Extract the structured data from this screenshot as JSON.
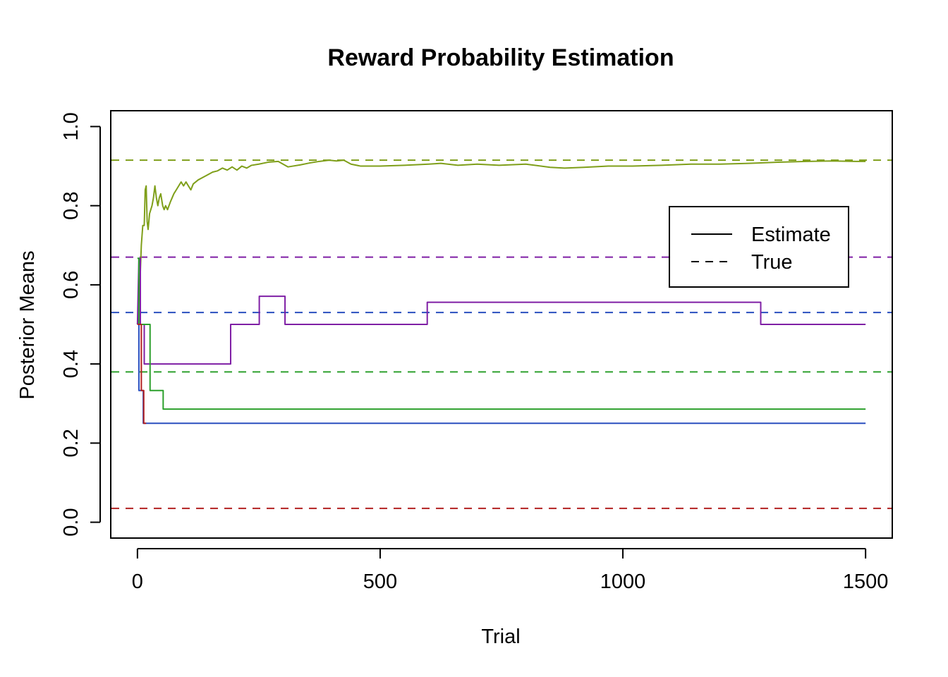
{
  "chart_data": {
    "type": "line",
    "title": "Reward Probability Estimation",
    "xlabel": "Trial",
    "ylabel": "Posterior Means",
    "xlim": [
      -55,
      1555
    ],
    "ylim": [
      -0.04,
      1.04
    ],
    "x_ticks": [
      0,
      500,
      1000,
      1500
    ],
    "x_tick_labels": [
      "0",
      "500",
      "1000",
      "1500"
    ],
    "y_ticks": [
      0.0,
      0.2,
      0.4,
      0.6,
      0.8,
      1.0
    ],
    "y_tick_labels": [
      "0.0",
      "0.2",
      "0.4",
      "0.6",
      "0.8",
      "1.0"
    ],
    "grid": false,
    "legend": {
      "position": "right",
      "entries": [
        {
          "label": "Estimate",
          "linestyle": "solid"
        },
        {
          "label": "True",
          "linestyle": "dashed"
        }
      ]
    },
    "series": [
      {
        "color": "#7f9f1a",
        "true_value": 0.915,
        "estimate": [
          [
            0,
            0.5
          ],
          [
            5,
            0.6
          ],
          [
            8,
            0.7
          ],
          [
            11,
            0.75
          ],
          [
            14,
            0.75
          ],
          [
            16,
            0.84
          ],
          [
            18,
            0.85
          ],
          [
            20,
            0.76
          ],
          [
            22,
            0.74
          ],
          [
            25,
            0.78
          ],
          [
            30,
            0.8
          ],
          [
            33,
            0.82
          ],
          [
            36,
            0.85
          ],
          [
            39,
            0.82
          ],
          [
            42,
            0.8
          ],
          [
            45,
            0.82
          ],
          [
            48,
            0.83
          ],
          [
            52,
            0.8
          ],
          [
            55,
            0.79
          ],
          [
            58,
            0.8
          ],
          [
            62,
            0.79
          ],
          [
            68,
            0.81
          ],
          [
            75,
            0.83
          ],
          [
            80,
            0.84
          ],
          [
            85,
            0.85
          ],
          [
            90,
            0.86
          ],
          [
            95,
            0.85
          ],
          [
            100,
            0.86
          ],
          [
            105,
            0.85
          ],
          [
            110,
            0.84
          ],
          [
            115,
            0.855
          ],
          [
            125,
            0.865
          ],
          [
            140,
            0.875
          ],
          [
            155,
            0.885
          ],
          [
            165,
            0.888
          ],
          [
            175,
            0.895
          ],
          [
            185,
            0.89
          ],
          [
            195,
            0.898
          ],
          [
            205,
            0.89
          ],
          [
            215,
            0.9
          ],
          [
            225,
            0.895
          ],
          [
            235,
            0.902
          ],
          [
            250,
            0.905
          ],
          [
            270,
            0.91
          ],
          [
            290,
            0.912
          ],
          [
            300,
            0.905
          ],
          [
            310,
            0.898
          ],
          [
            320,
            0.9
          ],
          [
            335,
            0.903
          ],
          [
            355,
            0.908
          ],
          [
            375,
            0.912
          ],
          [
            395,
            0.915
          ],
          [
            410,
            0.913
          ],
          [
            425,
            0.915
          ],
          [
            440,
            0.905
          ],
          [
            460,
            0.9
          ],
          [
            500,
            0.9
          ],
          [
            550,
            0.902
          ],
          [
            600,
            0.905
          ],
          [
            625,
            0.907
          ],
          [
            660,
            0.902
          ],
          [
            700,
            0.905
          ],
          [
            745,
            0.902
          ],
          [
            800,
            0.905
          ],
          [
            850,
            0.897
          ],
          [
            880,
            0.895
          ],
          [
            920,
            0.897
          ],
          [
            970,
            0.9
          ],
          [
            1020,
            0.9
          ],
          [
            1080,
            0.902
          ],
          [
            1140,
            0.905
          ],
          [
            1200,
            0.905
          ],
          [
            1260,
            0.907
          ],
          [
            1320,
            0.91
          ],
          [
            1380,
            0.912
          ],
          [
            1430,
            0.913
          ],
          [
            1480,
            0.912
          ],
          [
            1500,
            0.912
          ]
        ]
      },
      {
        "color": "#7f1fa5",
        "true_value": 0.67,
        "estimate": [
          [
            0,
            0.5
          ],
          [
            3,
            0.667
          ],
          [
            6,
            0.667
          ],
          [
            6,
            0.5
          ],
          [
            14,
            0.5
          ],
          [
            14,
            0.4
          ],
          [
            192,
            0.4
          ],
          [
            192,
            0.5
          ],
          [
            251,
            0.5
          ],
          [
            251,
            0.571
          ],
          [
            304,
            0.571
          ],
          [
            304,
            0.5
          ],
          [
            597,
            0.5
          ],
          [
            597,
            0.556
          ],
          [
            1284,
            0.556
          ],
          [
            1284,
            0.5
          ],
          [
            1500,
            0.5
          ]
        ]
      },
      {
        "color": "#2a4fbf",
        "true_value": 0.53,
        "estimate": [
          [
            0,
            0.5
          ],
          [
            3,
            0.5
          ],
          [
            3,
            0.333
          ],
          [
            12,
            0.333
          ],
          [
            12,
            0.25
          ],
          [
            1500,
            0.25
          ]
        ]
      },
      {
        "color": "#2ca02c",
        "true_value": 0.38,
        "estimate": [
          [
            0,
            0.667
          ],
          [
            3,
            0.667
          ],
          [
            3,
            0.5
          ],
          [
            26,
            0.5
          ],
          [
            26,
            0.333
          ],
          [
            53,
            0.333
          ],
          [
            53,
            0.286
          ],
          [
            1500,
            0.286
          ]
        ]
      },
      {
        "color": "#b22222",
        "true_value": 0.035,
        "estimate": [
          [
            0,
            0.5
          ],
          [
            8,
            0.5
          ],
          [
            8,
            0.333
          ],
          [
            13,
            0.333
          ],
          [
            13,
            0.25
          ],
          [
            18,
            0.25
          ]
        ]
      }
    ]
  }
}
